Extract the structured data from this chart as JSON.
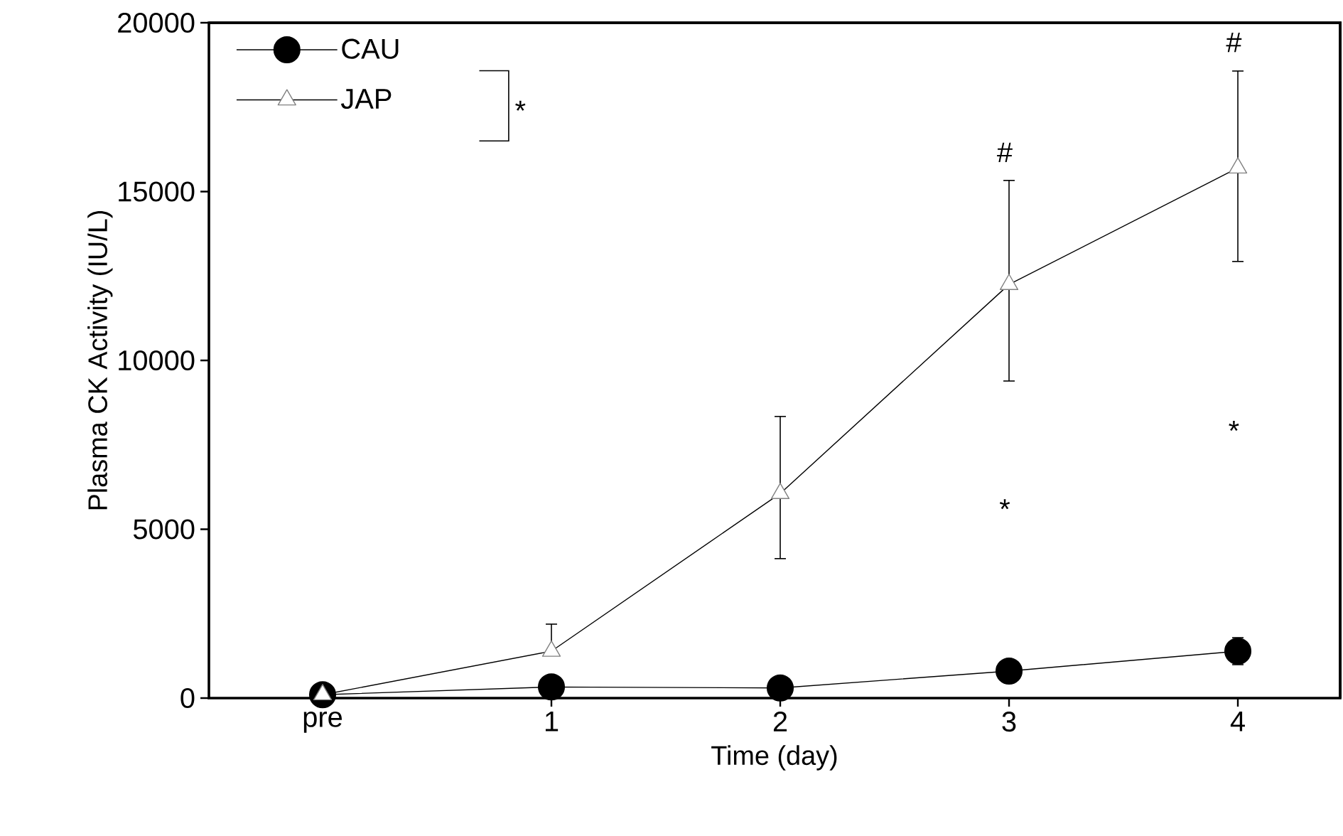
{
  "chart_data": {
    "type": "line",
    "xlabel": "Time (day)",
    "ylabel": "Plasma CK Activity (IU/L)",
    "categories": [
      "pre",
      "1",
      "2",
      "3",
      "4"
    ],
    "ylim": [
      0,
      20000
    ],
    "yticks": [
      0,
      5000,
      10000,
      15000,
      20000
    ],
    "grid": false,
    "legend": "top left",
    "line_style": "solid",
    "series": [
      {
        "name": "CAU",
        "color": "#000000",
        "marker": "circle",
        "values": [
          100,
          330,
          300,
          800,
          1390
        ],
        "errors": [
          null,
          null,
          null,
          null,
          400
        ]
      },
      {
        "name": "JAP",
        "color": "#ffffff",
        "marker": "triangle",
        "values": [
          100,
          1390,
          6060,
          12250,
          15700
        ],
        "errors": [
          null,
          [
            1390,
            2190
          ],
          [
            4130,
            8340
          ],
          [
            9390,
            15330
          ],
          [
            12930,
            18570
          ]
        ]
      }
    ],
    "annotations": [
      "#",
      "#",
      "*",
      "*",
      "*"
    ]
  }
}
